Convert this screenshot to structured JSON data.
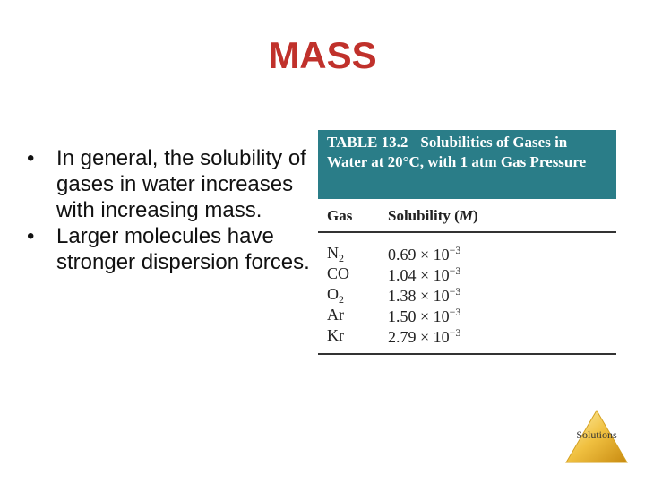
{
  "title": "MASS",
  "bullets": [
    "In general, the solubility of gases in water increases with increasing mass.",
    "Larger molecules have stronger dispersion forces."
  ],
  "table": {
    "label": "TABLE 13.2",
    "caption": "Solubilities of Gases in Water at 20°C, with 1 atm Gas Pressure",
    "headers": [
      [
        "Gas"
      ],
      [
        "Solubility (",
        "M",
        ")"
      ]
    ],
    "rows": [
      [
        [
          "N",
          "2"
        ],
        [
          "0.69 × 10",
          "−3"
        ]
      ],
      [
        [
          "CO"
        ],
        [
          "1.04 × 10",
          "−3"
        ]
      ],
      [
        [
          "O",
          "2"
        ],
        [
          "1.38 × 10",
          "−3"
        ]
      ],
      [
        [
          "Ar"
        ],
        [
          "1.50 × 10",
          "−3"
        ]
      ],
      [
        [
          "Kr"
        ],
        [
          "2.79 × 10",
          "−3"
        ]
      ]
    ]
  },
  "logo": "Solutions"
}
